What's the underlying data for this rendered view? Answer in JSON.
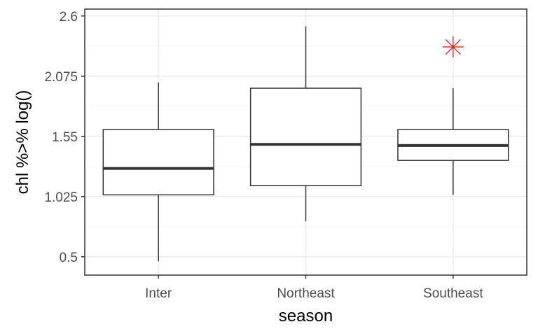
{
  "chart_data": {
    "type": "boxplot",
    "xlabel": "season",
    "ylabel": "chl %>% log()",
    "ylim": [
      0.34,
      2.66
    ],
    "y_ticks": [
      0.5,
      1.025,
      1.55,
      2.075,
      2.6
    ],
    "y_tick_labels": [
      "0.5",
      "1.025",
      "1.55",
      "2.075",
      "2.6"
    ],
    "grid": true,
    "categories": [
      "Inter",
      "Northeast",
      "Southeast"
    ],
    "boxes": [
      {
        "category": "Inter",
        "whisker_low": 0.46,
        "q1": 1.04,
        "median": 1.27,
        "q3": 1.61,
        "whisker_high": 2.02
      },
      {
        "category": "Northeast",
        "whisker_low": 0.81,
        "q1": 1.12,
        "median": 1.48,
        "q3": 1.97,
        "whisker_high": 2.51
      },
      {
        "category": "Southeast",
        "whisker_low": 1.04,
        "q1": 1.34,
        "median": 1.47,
        "q3": 1.61,
        "whisker_high": 1.97
      }
    ],
    "outliers": [
      {
        "category": "Southeast",
        "y": 2.33,
        "marker": "asterisk"
      }
    ],
    "colors": {
      "box_line": "#333333",
      "outlier": "#e41a1c",
      "grid_major": "#ebebeb",
      "grid_minor": "#f5f5f5",
      "panel_border": "#333333"
    }
  }
}
